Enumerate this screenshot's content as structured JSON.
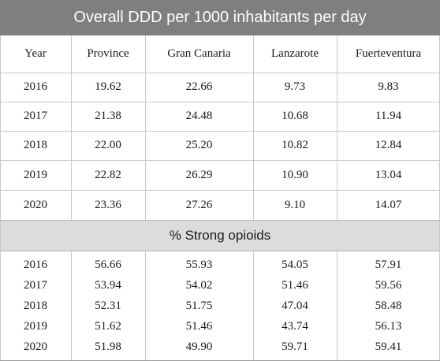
{
  "title": "Overall DDD per 1000 inhabitants per day",
  "columns": [
    "Year",
    "Province",
    "Gran Canaria",
    "Lanzarote",
    "Fuerteventura"
  ],
  "ddd_rows": [
    [
      "2016",
      "19.62",
      "22.66",
      "9.73",
      "9.83"
    ],
    [
      "2017",
      "21.38",
      "24.48",
      "10.68",
      "11.94"
    ],
    [
      "2018",
      "22.00",
      "25.20",
      "10.82",
      "12.84"
    ],
    [
      "2019",
      "22.82",
      "26.29",
      "10.90",
      "13.04"
    ],
    [
      "2020",
      "23.36",
      "27.26",
      "9.10",
      "14.07"
    ]
  ],
  "section_title": "% Strong opioids",
  "opioid_rows": [
    [
      "2016",
      "56.66",
      "55.93",
      "54.05",
      "57.91"
    ],
    [
      "2017",
      "53.94",
      "54.02",
      "51.46",
      "59.56"
    ],
    [
      "2018",
      "52.31",
      "51.75",
      "47.04",
      "58.48"
    ],
    [
      "2019",
      "51.62",
      "51.46",
      "43.74",
      "56.13"
    ],
    [
      "2020",
      "51.98",
      "49.90",
      "59.71",
      "59.41"
    ]
  ],
  "colors": {
    "title_bg": "#7f7f7f",
    "section_bg": "#dcdcdc",
    "grid_line": "#c8c8c8"
  }
}
